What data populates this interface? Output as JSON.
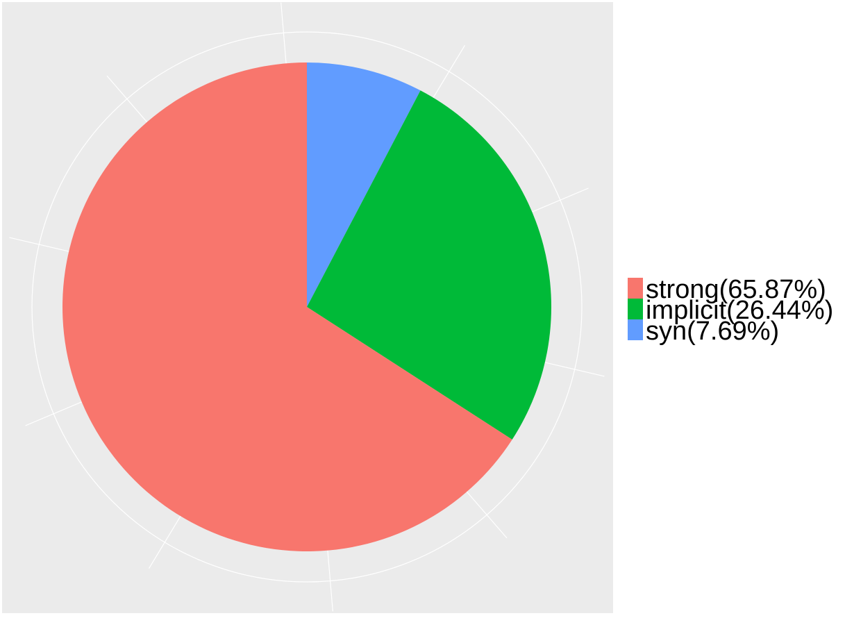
{
  "chart_data": {
    "type": "pie",
    "title": "",
    "start_angle": "12 o'clock",
    "direction": "clockwise",
    "slices": [
      {
        "label": "syn(7.69%)",
        "value": 7.69,
        "color": "#619CFF"
      },
      {
        "label": "implicit(26.44%)",
        "value": 26.44,
        "color": "#00BA38"
      },
      {
        "label": "strong(65.87%)",
        "value": 65.87,
        "color": "#F8766D"
      }
    ],
    "legend": {
      "placement": "right",
      "entries": [
        {
          "label": "strong(65.87%)",
          "color": "#F8766D"
        },
        {
          "label": "implicit(26.44%)",
          "color": "#00BA38"
        },
        {
          "label": "syn(7.69%)",
          "color": "#619CFF"
        }
      ]
    },
    "panel_background": "#EBEBEB",
    "grid": true,
    "grid_color": "#FFFFFF"
  }
}
